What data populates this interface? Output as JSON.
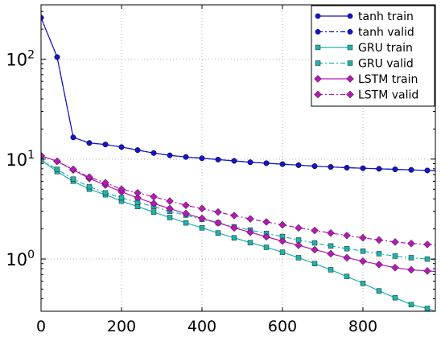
{
  "chart_data": {
    "type": "line",
    "title": "",
    "xlabel": "",
    "ylabel": "",
    "xlim": [
      0,
      980
    ],
    "ylim": [
      0.3,
      350
    ],
    "y_scale": "log",
    "grid": true,
    "legend_position": "top-right",
    "x_ticks": [
      0,
      200,
      400,
      600,
      800
    ],
    "y_ticks": [
      {
        "value": 1,
        "base": "10",
        "exp": "0"
      },
      {
        "value": 10,
        "base": "10",
        "exp": "1"
      },
      {
        "value": 100,
        "base": "10",
        "exp": "2"
      }
    ],
    "series": [
      {
        "name": "tanh train",
        "color": "#1515c8",
        "marker": "circle",
        "linestyle": "solid",
        "x": [
          0,
          40,
          80,
          120,
          160,
          200,
          240,
          280,
          320,
          360,
          400,
          440,
          480,
          520,
          560,
          600,
          640,
          680,
          720,
          760,
          800,
          840,
          880,
          920,
          960,
          980
        ],
        "y": [
          260,
          105,
          16.5,
          14.5,
          14.0,
          13.2,
          12.3,
          11.5,
          10.9,
          10.5,
          10.2,
          9.9,
          9.6,
          9.3,
          9.1,
          8.9,
          8.7,
          8.5,
          8.35,
          8.2,
          8.1,
          8.0,
          7.9,
          7.8,
          7.7,
          7.65
        ]
      },
      {
        "name": "tanh valid",
        "color": "#1515c8",
        "marker": "circle",
        "linestyle": "dashdot",
        "x": [
          0,
          40,
          80,
          120,
          160,
          200,
          240,
          280,
          320,
          360,
          400,
          440,
          480,
          520,
          560,
          600,
          640,
          680,
          720,
          760,
          800,
          840,
          880,
          920,
          960,
          980
        ],
        "y": [
          260,
          105,
          16.5,
          14.5,
          14.0,
          13.2,
          12.3,
          11.5,
          10.9,
          10.5,
          10.2,
          9.9,
          9.6,
          9.3,
          9.1,
          8.9,
          8.7,
          8.5,
          8.35,
          8.2,
          8.1,
          8.0,
          7.9,
          7.8,
          7.7,
          7.65
        ]
      },
      {
        "name": "GRU train",
        "color": "#20b2aa",
        "marker": "square",
        "linestyle": "solid",
        "x": [
          0,
          40,
          80,
          120,
          160,
          200,
          240,
          280,
          320,
          360,
          400,
          440,
          480,
          520,
          560,
          600,
          640,
          680,
          720,
          760,
          800,
          840,
          880,
          920,
          960,
          980
        ],
        "y": [
          9.8,
          7.5,
          6.0,
          5.0,
          4.4,
          3.8,
          3.35,
          2.95,
          2.6,
          2.3,
          2.05,
          1.82,
          1.63,
          1.46,
          1.31,
          1.17,
          1.03,
          0.9,
          0.78,
          0.67,
          0.57,
          0.48,
          0.41,
          0.35,
          0.32,
          0.3
        ]
      },
      {
        "name": "GRU valid",
        "color": "#20b2aa",
        "marker": "square",
        "linestyle": "dashdot",
        "x": [
          0,
          40,
          80,
          120,
          160,
          200,
          240,
          280,
          320,
          360,
          400,
          440,
          480,
          520,
          560,
          600,
          640,
          680,
          720,
          760,
          800,
          840,
          880,
          920,
          960,
          980
        ],
        "y": [
          9.8,
          7.9,
          6.3,
          5.3,
          4.6,
          4.1,
          3.7,
          3.35,
          3.0,
          2.75,
          2.5,
          2.3,
          2.1,
          1.95,
          1.8,
          1.68,
          1.55,
          1.45,
          1.35,
          1.27,
          1.2,
          1.13,
          1.07,
          1.03,
          1.0,
          0.98
        ]
      },
      {
        "name": "LSTM train",
        "color": "#b21ab2",
        "marker": "diamond",
        "linestyle": "solid",
        "x": [
          0,
          40,
          80,
          120,
          160,
          200,
          240,
          280,
          320,
          360,
          400,
          440,
          480,
          520,
          560,
          600,
          640,
          680,
          720,
          760,
          800,
          840,
          880,
          920,
          960,
          980
        ],
        "y": [
          10.8,
          9.5,
          7.8,
          6.4,
          5.5,
          4.7,
          4.1,
          3.6,
          3.2,
          2.85,
          2.55,
          2.3,
          2.05,
          1.85,
          1.67,
          1.51,
          1.37,
          1.24,
          1.13,
          1.03,
          0.95,
          0.88,
          0.82,
          0.78,
          0.76,
          0.75
        ]
      },
      {
        "name": "LSTM valid",
        "color": "#b21ab2",
        "marker": "diamond",
        "linestyle": "dashdot",
        "x": [
          0,
          40,
          80,
          120,
          160,
          200,
          240,
          280,
          320,
          360,
          400,
          440,
          480,
          520,
          560,
          600,
          640,
          680,
          720,
          760,
          800,
          840,
          880,
          920,
          960,
          980
        ],
        "y": [
          10.8,
          9.5,
          7.9,
          6.6,
          5.8,
          5.0,
          4.6,
          4.2,
          3.8,
          3.45,
          3.2,
          2.95,
          2.72,
          2.52,
          2.35,
          2.2,
          2.05,
          1.93,
          1.82,
          1.72,
          1.63,
          1.55,
          1.48,
          1.43,
          1.4,
          1.38
        ]
      }
    ]
  }
}
